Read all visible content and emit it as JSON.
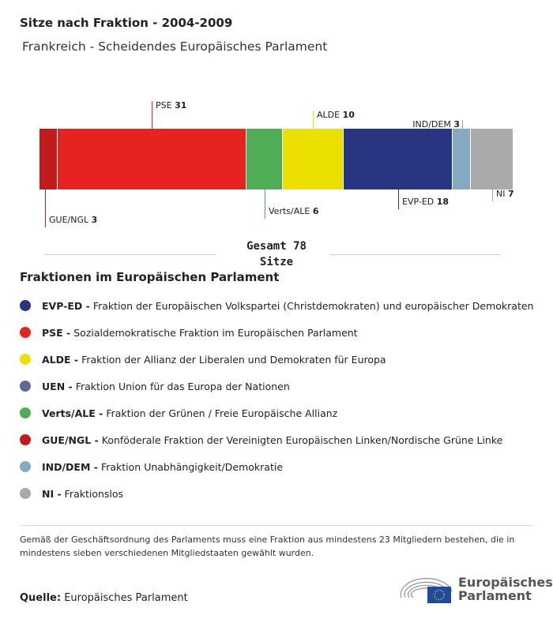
{
  "title": "Sitze nach Fraktion - 2004-2009",
  "subtitle": "Frankreich - Scheidendes Europäisches Parlament",
  "chart_data": {
    "type": "bar",
    "orientation": "stacked-horizontal",
    "title": "Sitze nach Fraktion - 2004-2009",
    "categories": [
      "GUE/NGL",
      "PSE",
      "Verts/ALE",
      "ALDE",
      "EVP-ED",
      "IND/DEM",
      "NI"
    ],
    "values": [
      3,
      31,
      6,
      10,
      18,
      3,
      7
    ],
    "colors": [
      "#c11b1e",
      "#e52421",
      "#50ad57",
      "#ebdf00",
      "#283580",
      "#84a9c0",
      "#aaaaaa"
    ],
    "total": 78,
    "total_label": "Gesamt 78",
    "total_unit": "Sitze"
  },
  "legend": {
    "title": "Fraktionen im Europäischen Parlament",
    "items": [
      {
        "abbr": "EVP-ED -",
        "name": "Fraktion der Europäischen Volkspartei (Christdemokraten) und europäischer Demokraten",
        "color": "#283580"
      },
      {
        "abbr": "PSE -",
        "name": "Sozialdemokratische Fraktion im Europäischen Parlament",
        "color": "#e52421"
      },
      {
        "abbr": "ALDE -",
        "name": "Fraktion der Allianz der Liberalen und Demokraten für Europa",
        "color": "#ebdf00"
      },
      {
        "abbr": "UEN -",
        "name": "Fraktion Union für das Europa der Nationen",
        "color": "#5a6a9a"
      },
      {
        "abbr": "Verts/ALE -",
        "name": "Fraktion der Grünen / Freie Europäische Allianz",
        "color": "#50ad57"
      },
      {
        "abbr": "GUE/NGL -",
        "name": "Konföderale Fraktion der Vereinigten Europäischen Linken/Nordische Grüne Linke",
        "color": "#c11b1e"
      },
      {
        "abbr": "IND/DEM -",
        "name": "Fraktion Unabhängigkeit/Demokratie",
        "color": "#84a9c0"
      },
      {
        "abbr": "NI -",
        "name": "Fraktionslos",
        "color": "#aaaaaa"
      }
    ]
  },
  "note": "Gemäß der Geschäftsordnung des Parlaments muss eine Fraktion aus mindestens 23 Mitgliedern bestehen, die in mindestens sieben verschiedenen Mitgliedstaaten gewählt wurden.",
  "source": {
    "label": "Quelle:",
    "value": "Europäisches Parlament"
  },
  "logo": {
    "line1": "Europäisches",
    "line2": "Parlament"
  }
}
